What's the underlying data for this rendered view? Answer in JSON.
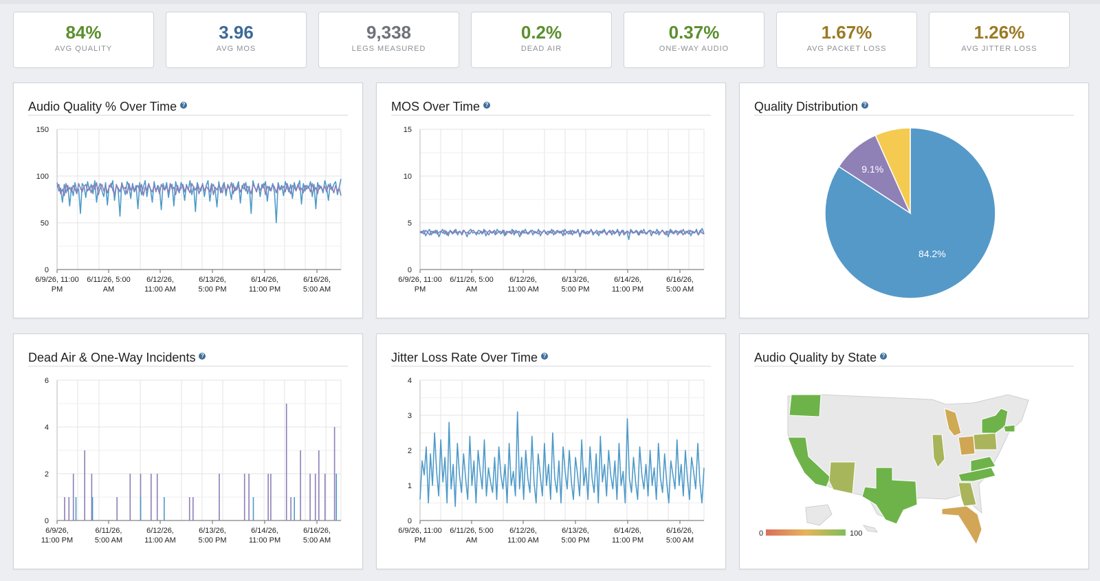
{
  "kpis": [
    {
      "value": "84%",
      "label": "AVG QUALITY",
      "color": "#5b8f2e"
    },
    {
      "value": "3.96",
      "label": "AVG MOS",
      "color": "#3d6a96"
    },
    {
      "value": "9,338",
      "label": "LEGS MEASURED",
      "color": "#6e737a"
    },
    {
      "value": "0.2%",
      "label": "DEAD AIR",
      "color": "#5b8f2e"
    },
    {
      "value": "0.37%",
      "label": "ONE-WAY AUDIO",
      "color": "#5b8f2e"
    },
    {
      "value": "1.67%",
      "label": "AVG PACKET LOSS",
      "color": "#9a7a24"
    },
    {
      "value": "1.26%",
      "label": "AVG JITTER LOSS",
      "color": "#9a7a24"
    }
  ],
  "panels": {
    "audio_quality": {
      "title": "Audio Quality % Over Time"
    },
    "mos": {
      "title": "MOS Over Time"
    },
    "distribution": {
      "title": "Quality Distribution"
    },
    "incidents": {
      "title": "Dead Air & One-Way Incidents"
    },
    "jitter": {
      "title": "Jitter Loss Rate Over Time"
    },
    "state": {
      "title": "Audio Quality by State"
    }
  },
  "help_glyph": "?",
  "x_ticks": [
    [
      "6/9/26, 11:00",
      "PM"
    ],
    [
      "6/11/26, 5:00",
      "AM"
    ],
    [
      "6/12/26,",
      "11:00 AM"
    ],
    [
      "6/13/26,",
      "5:00 PM"
    ],
    [
      "6/14/26,",
      "11:00 PM"
    ],
    [
      "6/16/26,",
      "5:00 AM"
    ]
  ],
  "x_ticks_incidents": [
    [
      "6/9/26,",
      "11:00 PM"
    ],
    [
      "6/11/26,",
      "5:00 AM"
    ],
    [
      "6/12/26,",
      "11:00 AM"
    ],
    [
      "6/13/26,",
      "5:00 PM"
    ],
    [
      "6/14/26,",
      "11:00 PM"
    ],
    [
      "6/16/26,",
      "5:00 AM"
    ]
  ],
  "chart_data": [
    {
      "type": "line",
      "title": "Audio Quality % Over Time",
      "ylim": [
        0,
        150
      ],
      "y_ticks": [
        "0",
        "50",
        "100",
        "150"
      ],
      "series": [
        {
          "color": "#4e9ac9",
          "values": [
            93,
            84,
            87,
            72,
            91,
            82,
            90,
            68,
            88,
            79,
            93,
            83,
            86,
            60,
            92,
            89,
            77,
            94,
            85,
            91,
            81,
            95,
            72,
            87,
            92,
            84,
            78,
            93,
            69,
            90,
            88,
            95,
            74,
            91,
            85,
            57,
            93,
            87,
            80,
            94,
            89,
            76,
            92,
            84,
            90,
            65,
            93,
            80,
            88,
            95,
            78,
            91,
            86,
            72,
            94,
            83,
            90,
            87,
            64,
            92,
            85,
            93,
            77,
            89,
            91,
            68,
            94,
            86,
            82,
            93,
            88,
            74,
            91,
            85,
            95,
            80,
            89,
            62,
            93,
            87,
            84,
            92,
            78,
            90,
            95,
            73,
            88,
            91,
            85,
            67,
            94,
            82,
            89,
            93,
            79,
            91,
            86,
            75,
            92,
            84,
            88,
            94,
            71,
            90,
            86,
            93,
            81,
            89,
            60,
            95,
            88,
            84,
            92,
            78,
            91,
            87,
            94,
            73,
            89,
            85,
            92,
            82,
            50,
            93,
            86,
            90,
            79,
            94,
            88,
            83,
            91,
            76,
            93,
            85,
            89,
            95,
            70,
            92,
            84,
            90,
            87,
            94,
            78,
            91,
            65,
            93,
            86,
            89,
            82,
            95,
            88,
            74,
            92,
            85,
            91,
            94,
            80,
            88,
            97
          ]
        },
        {
          "color": "#8c7db7",
          "values": [
            88,
            91,
            81,
            86,
            79,
            92,
            84,
            88,
            83,
            90,
            86,
            81,
            92,
            87,
            83,
            89,
            91,
            84,
            88,
            82,
            90,
            86,
            93,
            80,
            87,
            91,
            84,
            89,
            82,
            88,
            92,
            85,
            80,
            90,
            87,
            83,
            91,
            86,
            88,
            81,
            92,
            85,
            89,
            83,
            87,
            90,
            84,
            91,
            79,
            88,
            85,
            92,
            86,
            83,
            90,
            84,
            88,
            81,
            91,
            87,
            85,
            89,
            82,
            92,
            86,
            88,
            80,
            90,
            84,
            87,
            91,
            83,
            89,
            86,
            82,
            92,
            88,
            85,
            90,
            81,
            87,
            91,
            84,
            89,
            86,
            83,
            92,
            80,
            88,
            85,
            90,
            87,
            82,
            91,
            84,
            89,
            86,
            93,
            81,
            88,
            85,
            90,
            83,
            87,
            92,
            84,
            89,
            86,
            81,
            91,
            88,
            83,
            90,
            85,
            87,
            92,
            80,
            89,
            86,
            84,
            91,
            88,
            82,
            90,
            85,
            87,
            89,
            83,
            92,
            86,
            81,
            90,
            88,
            84,
            91,
            85,
            87,
            82,
            90,
            86,
            89,
            83,
            92,
            84,
            88,
            81,
            90,
            87,
            85,
            89,
            83,
            91,
            86,
            88,
            82,
            90,
            84,
            87,
            79
          ]
        }
      ]
    },
    {
      "type": "line",
      "title": "MOS Over Time",
      "ylim": [
        0,
        15
      ],
      "y_ticks": [
        "0",
        "5",
        "10",
        "15"
      ],
      "series": [
        {
          "color": "#4e9ac9",
          "values": [
            4.1,
            3.9,
            4.2,
            3.6,
            4.0,
            4.3,
            3.7,
            4.1,
            3.9,
            4.2,
            3.5,
            4.0,
            4.3,
            3.8,
            4.1,
            3.6,
            4.2,
            4.0,
            3.9,
            4.3,
            3.7,
            4.1,
            3.8,
            4.2,
            4.0,
            3.5,
            4.1,
            4.3,
            3.9,
            4.0,
            3.7,
            4.2,
            4.1,
            3.8,
            4.3,
            3.6,
            4.0,
            4.2,
            3.9,
            4.1,
            3.7,
            4.3,
            4.0,
            3.8,
            4.2,
            3.6,
            4.1,
            4.0,
            3.9,
            4.3,
            3.7,
            4.2,
            4.0,
            3.5,
            4.1,
            3.9,
            4.3,
            3.8,
            4.0,
            4.2,
            3.7,
            4.1,
            3.9,
            4.3,
            3.6,
            4.0,
            4.2,
            3.8,
            4.1,
            3.9,
            4.3,
            3.7,
            4.0,
            4.2,
            3.9,
            4.1,
            3.6,
            4.3,
            4.0,
            3.8,
            4.2,
            3.7,
            4.1,
            3.9,
            4.3,
            3.5,
            4.0,
            4.2,
            3.8,
            4.1,
            3.9,
            4.3,
            3.7,
            4.0,
            4.2,
            3.6,
            4.1,
            3.9,
            4.3,
            3.8,
            4.0,
            4.2,
            3.7,
            4.1,
            3.9,
            4.3,
            3.6,
            4.0,
            4.2,
            3.8,
            4.1,
            3.2,
            4.3,
            3.9,
            4.0,
            4.2,
            3.7,
            4.1,
            3.9,
            4.3,
            3.8,
            4.0,
            4.2,
            3.6,
            4.1,
            3.9,
            4.3,
            3.7,
            4.0,
            4.2,
            3.8,
            4.1,
            3.5,
            4.3,
            3.9,
            4.0,
            4.2,
            3.7,
            4.1,
            3.9,
            4.3,
            3.8,
            4.0,
            4.2,
            3.6,
            4.1,
            3.9,
            4.3,
            3.7,
            4.0,
            4.4,
            3.8
          ]
        },
        {
          "color": "#8c7db7",
          "values": [
            3.9,
            4.1,
            3.8,
            4.2,
            4.0,
            3.7,
            4.1,
            3.9,
            4.2,
            3.8,
            4.0,
            4.1,
            3.9,
            4.2,
            3.7,
            4.0,
            4.1,
            3.8,
            4.2,
            3.9,
            4.0,
            4.1,
            3.7,
            4.2,
            3.9,
            4.0,
            3.8,
            4.1,
            4.2,
            3.9,
            4.0,
            3.8,
            4.1,
            3.9,
            4.2,
            4.0,
            3.7,
            4.1,
            3.9,
            4.2,
            3.8,
            4.0,
            4.1,
            3.9,
            4.2,
            3.7,
            4.0,
            4.1,
            3.8,
            4.2,
            3.9,
            4.0,
            4.1,
            3.7,
            4.2,
            3.9,
            4.0,
            3.8,
            4.1,
            4.2,
            3.9,
            4.0,
            3.8,
            4.1,
            3.9,
            4.2,
            4.0,
            3.7,
            4.1,
            3.9,
            4.2,
            3.8,
            4.0,
            4.1,
            3.9,
            4.2,
            3.7,
            4.0,
            4.1,
            3.8,
            4.2,
            3.9,
            4.0,
            4.1,
            3.7,
            4.2,
            3.9,
            4.0,
            3.8,
            4.1,
            4.2,
            3.9,
            4.0,
            3.8,
            4.1,
            3.9,
            4.2,
            4.0,
            3.7,
            4.1,
            3.9,
            4.2,
            3.8,
            4.0,
            4.1,
            3.9,
            4.2,
            3.7,
            4.0,
            4.1,
            3.8,
            4.2,
            3.9,
            4.0,
            4.1,
            3.7,
            4.2,
            3.9,
            4.0,
            3.8,
            4.1,
            4.2,
            3.9,
            4.0,
            3.8,
            4.1,
            3.9,
            4.2,
            4.0,
            3.7,
            4.1,
            3.9,
            4.2,
            3.8,
            4.0,
            4.1,
            3.9,
            4.2,
            3.7,
            4.0,
            4.1,
            3.8,
            4.2,
            3.9,
            4.0,
            4.1,
            3.7,
            4.2,
            3.9,
            3.8
          ]
        }
      ]
    },
    {
      "type": "pie",
      "title": "Quality Distribution",
      "slices": [
        {
          "value": 84.2,
          "label": "84.2%",
          "color": "#5599c9"
        },
        {
          "value": 9.1,
          "label": "9.1%",
          "color": "#8f80b6"
        },
        {
          "value": 6.7,
          "label": "",
          "color": "#f4cb50"
        }
      ]
    },
    {
      "type": "bar",
      "title": "Dead Air & One-Way Incidents",
      "ylim": [
        0,
        6
      ],
      "y_ticks": [
        "0",
        "2",
        "4",
        "6"
      ],
      "series": [
        {
          "color": "#8c7db7",
          "bars": [
            [
              0.08,
              1
            ],
            [
              0.13,
              1
            ],
            [
              0.18,
              2
            ],
            [
              0.31,
              3
            ],
            [
              0.39,
              2
            ],
            [
              0.68,
              1
            ],
            [
              0.83,
              2
            ],
            [
              0.95,
              2
            ],
            [
              1.07,
              2
            ],
            [
              1.14,
              2
            ],
            [
              1.51,
              1
            ],
            [
              1.55,
              1
            ],
            [
              1.85,
              2
            ],
            [
              2.14,
              2
            ],
            [
              2.19,
              2
            ],
            [
              2.41,
              2
            ],
            [
              2.44,
              2
            ],
            [
              2.62,
              5
            ],
            [
              2.67,
              1
            ],
            [
              2.78,
              3
            ],
            [
              2.89,
              2
            ],
            [
              2.95,
              2
            ],
            [
              2.99,
              3
            ],
            [
              3.06,
              2
            ],
            [
              3.17,
              4
            ]
          ]
        },
        {
          "color": "#4e9ac9",
          "bars": [
            [
              0.21,
              1
            ],
            [
              0.4,
              1
            ],
            [
              0.95,
              1
            ],
            [
              1.22,
              1
            ],
            [
              2.24,
              1
            ],
            [
              2.71,
              1
            ],
            [
              3.19,
              2
            ]
          ]
        }
      ]
    },
    {
      "type": "line",
      "title": "Jitter Loss Rate Over Time",
      "ylim": [
        0,
        4
      ],
      "y_ticks": [
        "0",
        "1",
        "2",
        "3",
        "4"
      ],
      "series": [
        {
          "color": "#4e9ac9",
          "values": [
            0.6,
            1.7,
            1.3,
            2.1,
            0.5,
            1.9,
            1.0,
            2.5,
            1.4,
            0.7,
            2.3,
            1.1,
            1.8,
            0.5,
            2.8,
            0.9,
            1.6,
            0.4,
            2.2,
            1.3,
            0.8,
            1.9,
            1.2,
            0.6,
            2.4,
            1.0,
            1.7,
            0.5,
            2.0,
            1.4,
            0.9,
            2.3,
            0.7,
            1.5,
            1.1,
            0.8,
            1.8,
            0.6,
            2.1,
            1.3,
            0.9,
            1.6,
            0.5,
            2.2,
            1.0,
            1.4,
            0.7,
            3.1,
            0.9,
            1.8,
            0.6,
            2.0,
            1.2,
            0.8,
            2.4,
            1.1,
            0.5,
            1.9,
            1.3,
            0.7,
            2.2,
            1.0,
            1.6,
            0.6,
            2.5,
            1.2,
            0.8,
            1.7,
            0.5,
            2.1,
            1.4,
            0.9,
            2.0,
            1.1,
            0.6,
            1.8,
            1.3,
            0.7,
            2.3,
            1.0,
            1.5,
            0.6,
            2.1,
            1.2,
            0.8,
            1.9,
            0.5,
            2.4,
            1.1,
            1.6,
            0.7,
            2.0,
            1.3,
            0.9,
            1.7,
            0.6,
            2.2,
            1.0,
            1.4,
            0.5,
            2.9,
            1.2,
            0.8,
            1.8,
            1.1,
            0.6,
            2.1,
            1.3,
            0.9,
            1.6,
            0.7,
            2.0,
            1.0,
            1.5,
            0.6,
            2.2,
            1.2,
            0.8,
            1.9,
            1.1,
            0.5,
            1.7,
            1.3,
            0.9,
            2.3,
            1.0,
            1.6,
            0.7,
            2.0,
            1.2,
            0.6,
            1.8,
            1.4,
            0.9,
            2.2,
            1.1,
            0.5,
            1.5
          ]
        }
      ]
    },
    {
      "type": "heatmap",
      "title": "Audio Quality by State",
      "scale_min": "0",
      "scale_max": "100",
      "scale_colors": [
        "#d9705a",
        "#e7b35c",
        "#7fbf56"
      ],
      "states": [
        {
          "name": "Washington",
          "value": 95,
          "color": "#6eb34a"
        },
        {
          "name": "California",
          "value": 88,
          "color": "#6eb34a"
        },
        {
          "name": "Arizona",
          "value": 70,
          "color": "#a7b65a"
        },
        {
          "name": "Texas",
          "value": 90,
          "color": "#6eb34a"
        },
        {
          "name": "Illinois",
          "value": 72,
          "color": "#a8b45a"
        },
        {
          "name": "Michigan",
          "value": 62,
          "color": "#d0a955"
        },
        {
          "name": "Ohio",
          "value": 60,
          "color": "#cfa654"
        },
        {
          "name": "Pennsylvania",
          "value": 68,
          "color": "#a9b45b"
        },
        {
          "name": "New York",
          "value": 92,
          "color": "#6eb34a"
        },
        {
          "name": "Virginia",
          "value": 93,
          "color": "#6eb34a"
        },
        {
          "name": "North Carolina",
          "value": 91,
          "color": "#6eb34a"
        },
        {
          "name": "Georgia",
          "value": 72,
          "color": "#a9b45b"
        },
        {
          "name": "Florida",
          "value": 62,
          "color": "#d2a656"
        },
        {
          "name": "Massachusetts",
          "value": 90,
          "color": "#6eb34a"
        }
      ]
    }
  ]
}
